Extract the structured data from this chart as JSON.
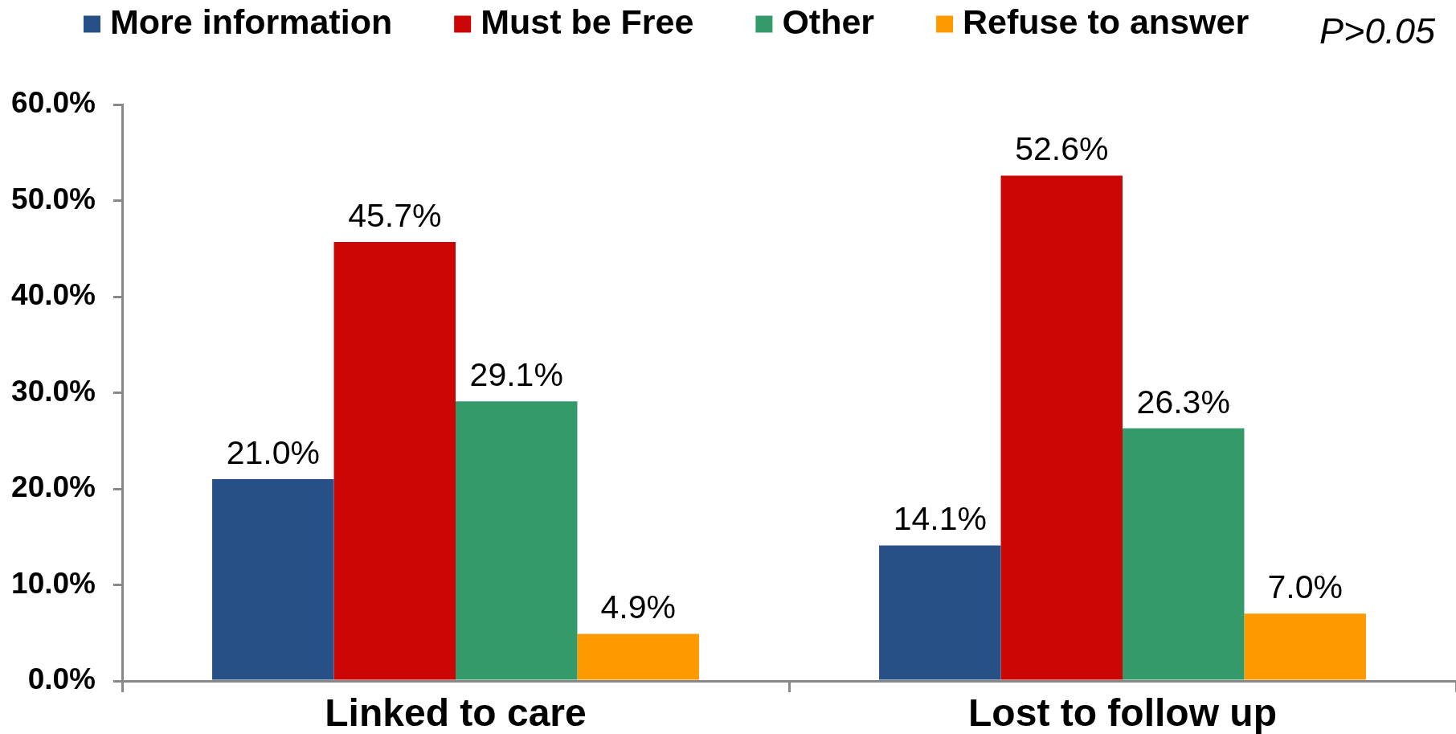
{
  "chart_data": {
    "type": "bar",
    "categories": [
      "Linked to care",
      "Lost to follow up"
    ],
    "series": [
      {
        "name": "More information",
        "color": "#265086",
        "values": [
          21.0,
          14.1
        ],
        "value_labels": [
          "21.0%",
          "14.1%"
        ]
      },
      {
        "name": "Must be Free",
        "color": "#cc0605",
        "values": [
          45.7,
          52.6
        ],
        "value_labels": [
          "45.7%",
          "52.6%"
        ]
      },
      {
        "name": "Other",
        "color": "#359a6a",
        "values": [
          29.1,
          26.3
        ],
        "value_labels": [
          "29.1%",
          "26.3%"
        ]
      },
      {
        "name": "Refuse to answer",
        "color": "#fd9a00",
        "values": [
          4.9,
          7.0
        ],
        "value_labels": [
          "4.9%",
          "7.0%"
        ]
      }
    ],
    "ylim": [
      0,
      60
    ],
    "yticks": [
      {
        "value": 0,
        "label": "0.0%"
      },
      {
        "value": 10,
        "label": "10.0%"
      },
      {
        "value": 20,
        "label": "20.0%"
      },
      {
        "value": 30,
        "label": "30.0%"
      },
      {
        "value": 40,
        "label": "40.0%"
      },
      {
        "value": 50,
        "label": "50.0%"
      },
      {
        "value": 60,
        "label": "60.0%"
      }
    ],
    "grid": false,
    "legend": "top",
    "annotations": [
      "P>0.05"
    ]
  }
}
